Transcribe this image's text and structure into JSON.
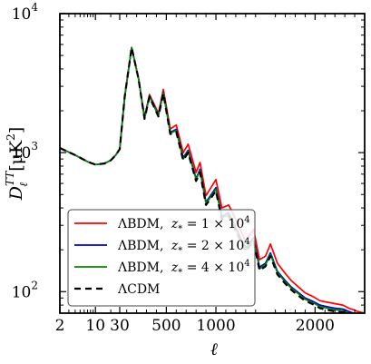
{
  "chart_data": {
    "type": "line",
    "xlabel": "ℓ",
    "ylabel": "D_ℓ^{TT} [μK²]",
    "x_scale": "log-linear (log for ℓ < 30, linear for ℓ ≥ 30)",
    "y_scale": "log",
    "xlim": [
      2,
      2500
    ],
    "ylim": [
      70,
      10000
    ],
    "x_ticks": [
      {
        "value": 2,
        "label": "2"
      },
      {
        "value": 10,
        "label": "10"
      },
      {
        "value": 30,
        "label": "30"
      },
      {
        "value": 500,
        "label": "500"
      },
      {
        "value": 1000,
        "label": "1000"
      },
      {
        "value": 2000,
        "label": "2000"
      }
    ],
    "y_ticks": [
      {
        "value": 100,
        "base": "10",
        "exp": "2"
      },
      {
        "value": 1000,
        "base": "10",
        "exp": "3"
      },
      {
        "value": 10000,
        "base": "10",
        "exp": "4"
      }
    ],
    "legend_position": "lower-left",
    "series": [
      {
        "name": "ΛBDM, z* = 1 × 10^4",
        "label_main": "ΛBDM,",
        "label_z": "z",
        "label_star": "*",
        "label_eq": " = 1 × 10",
        "label_exp": "4",
        "color": "#ff0000",
        "dash": "solid",
        "x": [
          2,
          4,
          7,
          10,
          15,
          20,
          25,
          30,
          80,
          150,
          220,
          280,
          330,
          420,
          470,
          540,
          600,
          670,
          720,
          800,
          840,
          900,
          1000,
          1060,
          1130,
          1200,
          1300,
          1380,
          1440,
          1500,
          1550,
          1620,
          1700,
          1760,
          1820,
          1900,
          1980,
          2050,
          2120,
          2200,
          2280,
          2340,
          2390,
          2430,
          2500
        ],
        "y": [
          1080,
          960,
          860,
          820,
          835,
          880,
          960,
          1060,
          2520,
          5700,
          3400,
          1800,
          2620,
          1920,
          2850,
          1480,
          1580,
          1000,
          1150,
          720,
          850,
          490,
          640,
          400,
          420,
          330,
          230,
          280,
          170,
          180,
          220,
          160,
          135,
          120,
          110,
          98,
          92,
          86,
          84,
          82,
          80,
          76,
          74,
          72,
          70
        ]
      },
      {
        "name": "ΛBDM, z* = 2 × 10^4",
        "label_main": "ΛBDM,",
        "label_z": "z",
        "label_star": "*",
        "label_eq": " = 2 × 10",
        "label_exp": "4",
        "color": "#0000cc",
        "dash": "solid",
        "x": [
          2,
          4,
          7,
          10,
          15,
          20,
          25,
          30,
          80,
          150,
          220,
          280,
          330,
          420,
          470,
          540,
          600,
          670,
          720,
          800,
          840,
          900,
          1000,
          1060,
          1130,
          1200,
          1300,
          1380,
          1440,
          1500,
          1550,
          1620,
          1700,
          1760,
          1820,
          1900,
          1980,
          2050,
          2120,
          2200,
          2280,
          2340,
          2390,
          2430,
          2500
        ],
        "y": [
          1080,
          960,
          860,
          820,
          835,
          880,
          960,
          1060,
          2520,
          5700,
          3390,
          1770,
          2560,
          1860,
          2720,
          1400,
          1470,
          920,
          1040,
          650,
          760,
          440,
          560,
          350,
          370,
          290,
          205,
          245,
          150,
          160,
          190,
          140,
          120,
          108,
          100,
          90,
          85,
          80,
          78,
          76,
          75,
          72,
          70,
          69,
          68
        ]
      },
      {
        "name": "ΛBDM, z* = 4 × 10^4",
        "label_main": "ΛBDM,",
        "label_z": "z",
        "label_star": "*",
        "label_eq": " = 4 × 10",
        "label_exp": "4",
        "color": "#008800",
        "dash": "solid",
        "x": [
          2,
          4,
          7,
          10,
          15,
          20,
          25,
          30,
          80,
          150,
          220,
          280,
          330,
          420,
          470,
          540,
          600,
          670,
          720,
          800,
          840,
          900,
          1000,
          1060,
          1130,
          1200,
          1300,
          1380,
          1440,
          1500,
          1550,
          1620,
          1700,
          1760,
          1820,
          1900,
          1980,
          2050,
          2120,
          2200,
          2280,
          2340,
          2390,
          2430,
          2500
        ],
        "y": [
          1080,
          960,
          860,
          820,
          835,
          880,
          960,
          1060,
          2520,
          5700,
          3385,
          1760,
          2540,
          1840,
          2690,
          1380,
          1440,
          900,
          1020,
          640,
          740,
          430,
          545,
          340,
          360,
          283,
          200,
          238,
          146,
          156,
          185,
          137,
          117,
          106,
          98,
          88,
          83,
          78,
          76,
          74,
          73,
          70,
          69,
          68,
          67
        ]
      },
      {
        "name": "ΛCDM",
        "label_main": "ΛCDM",
        "color": "#000000",
        "dash": "dashed",
        "x": [
          2,
          4,
          7,
          10,
          15,
          20,
          25,
          30,
          80,
          150,
          220,
          280,
          330,
          420,
          470,
          540,
          600,
          670,
          720,
          800,
          840,
          900,
          1000,
          1060,
          1130,
          1200,
          1300,
          1380,
          1440,
          1500,
          1550,
          1620,
          1700,
          1760,
          1820,
          1900,
          1980,
          2050,
          2120,
          2200,
          2280,
          2340,
          2390,
          2430,
          2500
        ],
        "y": [
          1080,
          960,
          860,
          820,
          835,
          880,
          960,
          1060,
          2520,
          5700,
          3380,
          1750,
          2520,
          1820,
          2660,
          1360,
          1410,
          880,
          1000,
          625,
          720,
          420,
          530,
          330,
          350,
          276,
          195,
          232,
          142,
          152,
          180,
          133,
          114,
          103,
          95,
          86,
          81,
          76,
          74,
          72,
          71,
          69,
          68,
          67,
          66
        ]
      }
    ]
  }
}
